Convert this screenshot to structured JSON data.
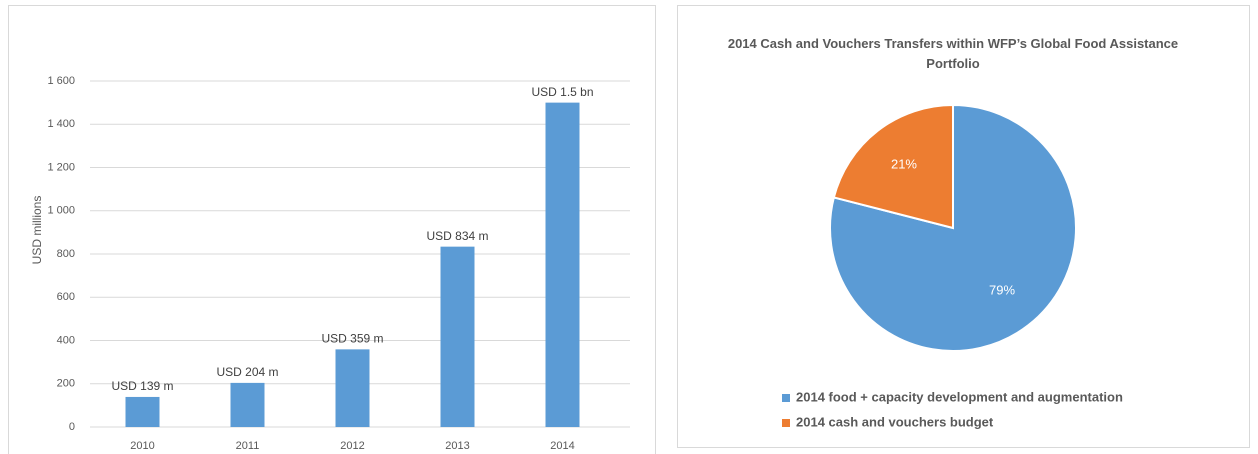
{
  "chart_data": [
    {
      "type": "bar",
      "y_label": "USD millions",
      "categories": [
        "2010",
        "2011",
        "2012",
        "2013",
        "2014"
      ],
      "values": [
        139,
        204,
        359,
        834,
        1500
      ],
      "value_labels": [
        "USD 139 m",
        "USD 204 m",
        "USD 359 m",
        "USD 834 m",
        "USD 1.5 bn"
      ],
      "color": "#5b9bd5",
      "ylim": [
        0,
        1600
      ],
      "yticks": [
        0,
        200,
        400,
        600,
        800,
        {
          "value": 1000,
          "label": "1 000"
        },
        {
          "value": 1200,
          "label": "1 200"
        },
        {
          "value": 1400,
          "label": "1 400"
        },
        {
          "value": 1600,
          "label": "1 600"
        }
      ],
      "grid": true
    },
    {
      "type": "pie",
      "title": "2014 Cash and Vouchers Transfers within WFP’s Global Food Assistance Portfolio",
      "categories": [
        "2014 food + capacity development and augmentation",
        "2014 cash and vouchers budget"
      ],
      "values": [
        79,
        21
      ],
      "value_labels": [
        "79%",
        "21%"
      ],
      "colors": [
        "#5b9bd5",
        "#ed7d31"
      ],
      "legend": "bottom"
    }
  ]
}
